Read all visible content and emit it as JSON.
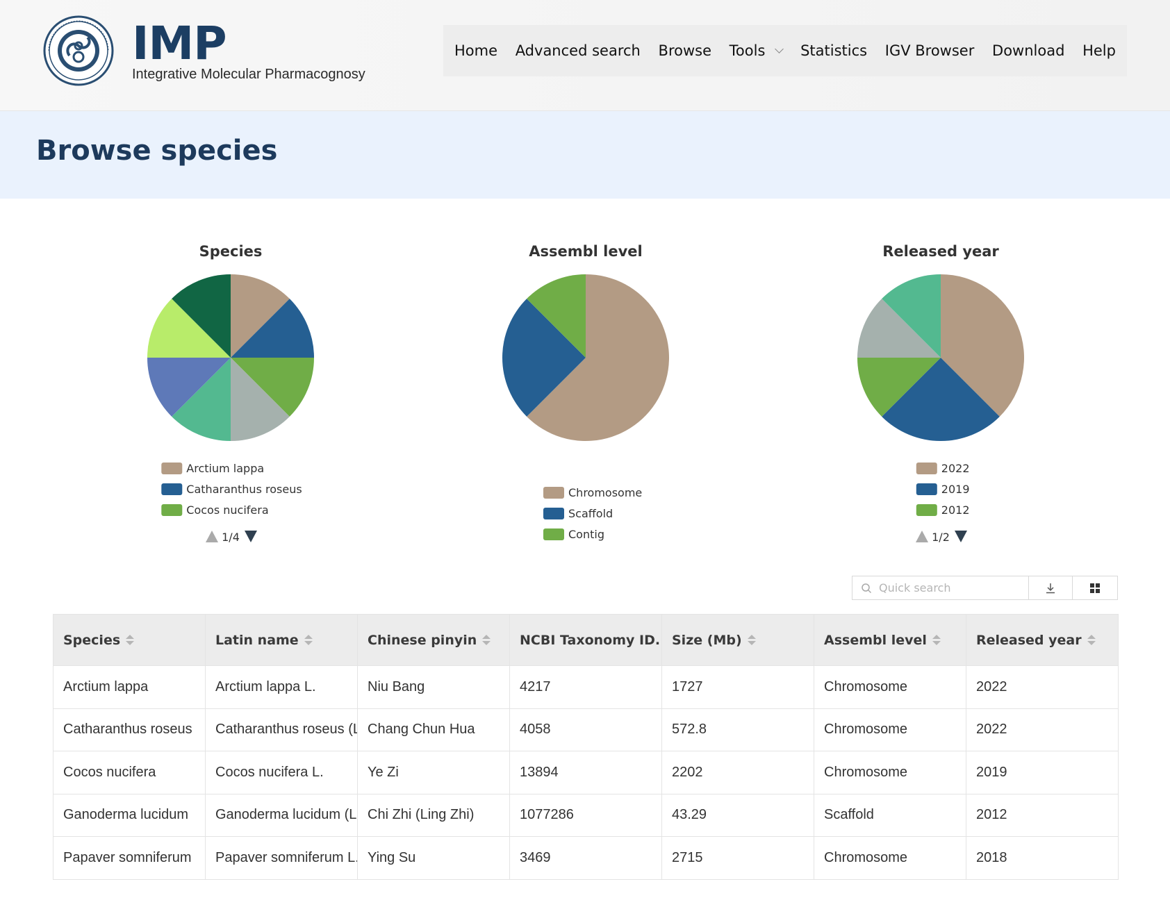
{
  "header": {
    "brand_title": "IMP",
    "brand_subtitle": "Integrative Molecular Pharmacognosy",
    "nav": [
      "Home",
      "Advanced search",
      "Browse",
      "Tools",
      "Statistics",
      "IGV Browser",
      "Download",
      "Help"
    ]
  },
  "page_title": "Browse species",
  "colors": [
    "#b39b84",
    "#255f92",
    "#70ad47",
    "#a5b1ad",
    "#53b990",
    "#5e79b8",
    "#b8ec6a",
    "#116644"
  ],
  "chart_data": [
    {
      "type": "pie",
      "title": "Species",
      "labels": [
        "Arctium lappa",
        "Catharanthus roseus",
        "Cocos nucifera",
        "Ganoderma lucidum",
        "Papaver somniferum",
        "",
        "",
        ""
      ],
      "values": [
        1,
        1,
        1,
        1,
        1,
        1,
        1,
        1
      ],
      "legend_visible": [
        "Arctium lappa",
        "Catharanthus roseus",
        "Cocos nucifera"
      ],
      "legend_page": "1/4",
      "legend_placement": "bottom"
    },
    {
      "type": "pie",
      "title": "Assembl level",
      "labels": [
        "Chromosome",
        "Scaffold",
        "Contig"
      ],
      "values": [
        5,
        2,
        1
      ],
      "legend_visible": [
        "Chromosome",
        "Scaffold",
        "Contig"
      ],
      "legend_page": "",
      "legend_placement": "bottom"
    },
    {
      "type": "pie",
      "title": "Released year",
      "labels": [
        "2022",
        "2019",
        "2012",
        "2018",
        ""
      ],
      "values": [
        3,
        2,
        1,
        1,
        1
      ],
      "legend_visible": [
        "2022",
        "2019",
        "2012"
      ],
      "legend_page": "1/2",
      "legend_placement": "bottom"
    }
  ],
  "toolbar": {
    "search_placeholder": "Quick search",
    "download_icon": "download-icon",
    "grid_icon": "grid-icon"
  },
  "table": {
    "columns": [
      "Species",
      "Latin name",
      "Chinese pinyin",
      "NCBI Taxonomy ID..",
      "Size (Mb)",
      "Assembl level",
      "Released year"
    ],
    "rows": [
      [
        "Arctium lappa",
        "Arctium lappa L.",
        "Niu Bang",
        "4217",
        "1727",
        "Chromosome",
        "2022"
      ],
      [
        "Catharanthus roseus",
        "Catharanthus roseus (L.)",
        "Chang Chun Hua",
        "4058",
        "572.8",
        "Chromosome",
        "2022"
      ],
      [
        "Cocos nucifera",
        "Cocos nucifera L.",
        "Ye Zi",
        "13894",
        "2202",
        "Chromosome",
        "2019"
      ],
      [
        "Ganoderma lucidum",
        "Ganoderma lucidum (Ley",
        "Chi Zhi (Ling Zhi)",
        "1077286",
        "43.29",
        "Scaffold",
        "2012"
      ],
      [
        "Papaver somniferum",
        "Papaver somniferum L.",
        "Ying Su",
        "3469",
        "2715",
        "Chromosome",
        "2018"
      ]
    ]
  }
}
